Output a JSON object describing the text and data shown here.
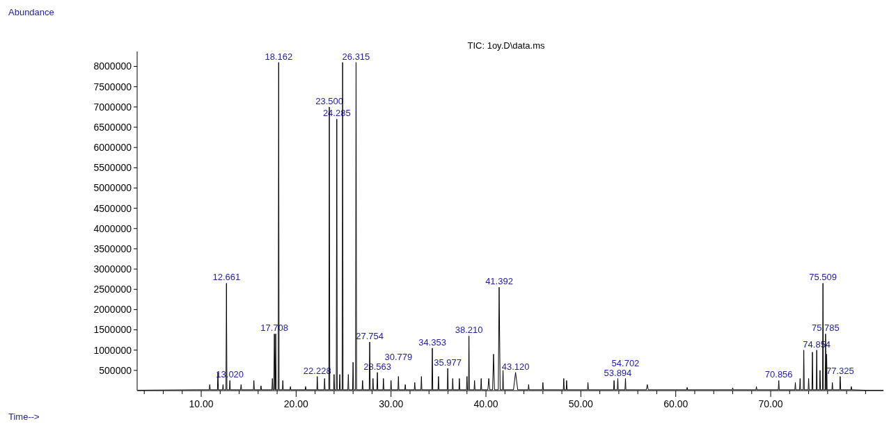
{
  "chart_data": {
    "type": "line",
    "title": "TIC: 1oy.D\\data.ms",
    "xlim": [
      3.25,
      82.1
    ],
    "ylim": [
      0,
      8370000
    ],
    "xticks": [
      {
        "value": 4,
        "label": null
      },
      {
        "value": 6,
        "label": null
      },
      {
        "value": 8,
        "label": null
      },
      {
        "value": 10,
        "label": "10.00"
      },
      {
        "value": 12,
        "label": null
      },
      {
        "value": 14,
        "label": null
      },
      {
        "value": 16,
        "label": null
      },
      {
        "value": 18,
        "label": null
      },
      {
        "value": 20,
        "label": "20.00"
      },
      {
        "value": 22,
        "label": null
      },
      {
        "value": 24,
        "label": null
      },
      {
        "value": 26,
        "label": null
      },
      {
        "value": 28,
        "label": null
      },
      {
        "value": 30,
        "label": "30.00"
      },
      {
        "value": 32,
        "label": null
      },
      {
        "value": 34,
        "label": null
      },
      {
        "value": 36,
        "label": null
      },
      {
        "value": 38,
        "label": null
      },
      {
        "value": 40,
        "label": "40.00"
      },
      {
        "value": 42,
        "label": null
      },
      {
        "value": 44,
        "label": null
      },
      {
        "value": 46,
        "label": null
      },
      {
        "value": 48,
        "label": null
      },
      {
        "value": 50,
        "label": "50.00"
      },
      {
        "value": 52,
        "label": null
      },
      {
        "value": 54,
        "label": null
      },
      {
        "value": 56,
        "label": null
      },
      {
        "value": 58,
        "label": null
      },
      {
        "value": 60,
        "label": "60.00"
      },
      {
        "value": 62,
        "label": null
      },
      {
        "value": 64,
        "label": null
      },
      {
        "value": 66,
        "label": null
      },
      {
        "value": 68,
        "label": null
      },
      {
        "value": 70,
        "label": "70.00"
      },
      {
        "value": 72,
        "label": null
      },
      {
        "value": 74,
        "label": null
      },
      {
        "value": 76,
        "label": null
      },
      {
        "value": 78,
        "label": null
      },
      {
        "value": 80,
        "label": null
      },
      {
        "value": 82,
        "label": null
      }
    ],
    "yticks": [
      500000,
      1000000,
      1500000,
      2000000,
      2500000,
      3000000,
      3500000,
      4000000,
      4500000,
      5000000,
      5500000,
      6000000,
      6500000,
      7000000,
      7500000,
      8000000
    ],
    "series": [
      {
        "color": "#000000",
        "x": [
          3.3,
          9.5,
          10.85,
          10.9,
          10.95,
          11.71,
          11.76,
          11.81,
          12.25,
          12.3,
          12.35,
          12.61,
          12.661,
          12.71,
          12.97,
          13.02,
          13.07,
          14.15,
          14.2,
          14.25,
          15.5,
          15.55,
          15.6,
          16.25,
          16.3,
          16.35,
          17.45,
          17.5,
          17.55,
          17.65,
          17.708,
          17.77,
          17.8,
          17.85,
          17.9,
          18.11,
          18.162,
          18.21,
          18.55,
          18.6,
          18.65,
          19.35,
          19.4,
          19.45,
          20.95,
          21.0,
          21.05,
          22.18,
          22.228,
          22.28,
          22.95,
          23.0,
          23.05,
          23.45,
          23.5,
          23.55,
          23.95,
          24.0,
          24.05,
          24.23,
          24.285,
          24.33,
          24.55,
          24.6,
          24.65,
          24.85,
          24.9,
          24.95,
          25.45,
          25.5,
          25.55,
          25.95,
          26.0,
          26.05,
          26.26,
          26.315,
          26.37,
          26.95,
          27.0,
          27.05,
          27.7,
          27.754,
          27.81,
          28.05,
          28.1,
          28.15,
          28.51,
          28.563,
          28.61,
          29.15,
          29.2,
          29.25,
          29.95,
          30.0,
          30.05,
          30.73,
          30.779,
          30.83,
          31.45,
          31.5,
          31.55,
          32.45,
          32.5,
          32.55,
          33.15,
          33.2,
          33.25,
          34.3,
          34.353,
          34.4,
          34.95,
          35.0,
          35.05,
          35.93,
          35.977,
          36.03,
          36.45,
          36.5,
          36.55,
          37.15,
          37.2,
          37.25,
          37.95,
          38.0,
          38.05,
          38.16,
          38.21,
          38.26,
          38.75,
          38.8,
          38.85,
          39.45,
          39.5,
          39.55,
          40.2,
          40.3,
          40.4,
          40.7,
          40.8,
          40.9,
          41.3,
          41.392,
          41.5,
          41.75,
          41.8,
          41.85,
          42.9,
          43.12,
          43.35,
          44.45,
          44.5,
          44.55,
          45.95,
          46.0,
          46.05,
          48.15,
          48.2,
          48.25,
          48.45,
          48.5,
          48.55,
          50.7,
          50.75,
          50.8,
          53.45,
          53.5,
          53.55,
          53.84,
          53.894,
          53.94,
          54.65,
          54.702,
          54.75,
          56.9,
          57.0,
          57.1,
          61.15,
          61.2,
          61.25,
          65.95,
          66.0,
          66.05,
          68.45,
          68.5,
          68.55,
          70.8,
          70.856,
          70.9,
          72.55,
          72.6,
          72.65,
          73.05,
          73.1,
          73.15,
          73.44,
          73.49,
          73.54,
          73.95,
          74.0,
          74.05,
          74.35,
          74.4,
          74.45,
          74.8,
          74.854,
          74.9,
          75.15,
          75.2,
          75.25,
          75.46,
          75.509,
          75.56,
          75.74,
          75.785,
          75.84,
          75.87,
          75.9,
          75.95,
          76.45,
          76.5,
          76.55,
          77.27,
          77.325,
          77.38,
          78.45,
          78.5,
          78.55,
          80.0,
          82.0
        ],
        "values": [
          10000,
          20000,
          20000,
          150000,
          20000,
          20000,
          450000,
          20000,
          20000,
          150000,
          20000,
          20000,
          2650000,
          20000,
          20000,
          250000,
          20000,
          20000,
          150000,
          20000,
          20000,
          250000,
          20000,
          20000,
          120000,
          20000,
          20000,
          300000,
          20000,
          20000,
          1400000,
          20000,
          20000,
          1400000,
          20000,
          20000,
          8100000,
          20000,
          20000,
          250000,
          20000,
          20000,
          100000,
          20000,
          20000,
          100000,
          20000,
          20000,
          350000,
          20000,
          20000,
          300000,
          20000,
          20000,
          7000000,
          20000,
          20000,
          400000,
          20000,
          20000,
          6700000,
          20000,
          20000,
          400000,
          20000,
          20000,
          8100000,
          20000,
          20000,
          400000,
          20000,
          20000,
          700000,
          20000,
          20000,
          8100000,
          20000,
          20000,
          250000,
          20000,
          20000,
          1200000,
          20000,
          20000,
          300000,
          20000,
          20000,
          450000,
          20000,
          20000,
          300000,
          20000,
          20000,
          250000,
          20000,
          20000,
          350000,
          20000,
          20000,
          150000,
          20000,
          20000,
          200000,
          20000,
          20000,
          350000,
          20000,
          20000,
          1050000,
          20000,
          20000,
          350000,
          20000,
          20000,
          550000,
          20000,
          20000,
          300000,
          20000,
          20000,
          300000,
          20000,
          20000,
          350000,
          20000,
          20000,
          1350000,
          20000,
          20000,
          250000,
          20000,
          20000,
          300000,
          20000,
          20000,
          300000,
          20000,
          20000,
          900000,
          20000,
          20000,
          2550000,
          20000,
          20000,
          500000,
          20000,
          20000,
          450000,
          20000,
          20000,
          150000,
          20000,
          20000,
          200000,
          20000,
          20000,
          300000,
          20000,
          20000,
          250000,
          20000,
          20000,
          200000,
          20000,
          20000,
          250000,
          20000,
          20000,
          300000,
          20000,
          20000,
          300000,
          20000,
          20000,
          150000,
          20000,
          20000,
          80000,
          20000,
          20000,
          70000,
          20000,
          20000,
          100000,
          20000,
          20000,
          250000,
          20000,
          20000,
          200000,
          20000,
          20000,
          300000,
          20000,
          20000,
          1000000,
          20000,
          20000,
          300000,
          20000,
          20000,
          950000,
          20000,
          20000,
          1000000,
          20000,
          20000,
          500000,
          20000,
          20000,
          2650000,
          20000,
          20000,
          1400000,
          20000,
          20000,
          900000,
          20000,
          20000,
          200000,
          20000,
          20000,
          350000,
          20000,
          20000,
          100000,
          20000,
          10000,
          10000
        ]
      }
    ],
    "annotations": [
      "Abundance",
      "Time-->",
      {
        "text": "12.661",
        "x": 12.661,
        "y": 2650000
      },
      {
        "text": "13.020",
        "x": 13.02,
        "y": 250000
      },
      {
        "text": "17.708",
        "x": 17.708,
        "y": 1400000
      },
      {
        "text": "18.162",
        "x": 18.162,
        "y": 8100000
      },
      {
        "text": "22.228",
        "x": 22.228,
        "y": 350000
      },
      {
        "text": "23.500",
        "x": 23.5,
        "y": 7000000
      },
      {
        "text": "24.285",
        "x": 24.285,
        "y": 6700000
      },
      {
        "text": "26.315",
        "x": 26.315,
        "y": 8100000
      },
      {
        "text": "27.754",
        "x": 27.754,
        "y": 1200000
      },
      {
        "text": "28.563",
        "x": 28.563,
        "y": 450000
      },
      {
        "text": "30.779",
        "x": 30.779,
        "y": 350000
      },
      {
        "text": "34.353",
        "x": 34.353,
        "y": 1050000
      },
      {
        "text": "35.977",
        "x": 35.977,
        "y": 550000
      },
      {
        "text": "38.210",
        "x": 38.21,
        "y": 1350000
      },
      {
        "text": "41.392",
        "x": 41.392,
        "y": 2550000
      },
      {
        "text": "43.120",
        "x": 43.12,
        "y": 450000
      },
      {
        "text": "53.894",
        "x": 53.894,
        "y": 300000
      },
      {
        "text": "54.702",
        "x": 54.702,
        "y": 300000
      },
      {
        "text": "70.856",
        "x": 70.856,
        "y": 250000
      },
      {
        "text": "74.854",
        "x": 74.854,
        "y": 1000000
      },
      {
        "text": "75.509",
        "x": 75.509,
        "y": 2650000
      },
      {
        "text": "75.785",
        "x": 75.785,
        "y": 1400000
      },
      {
        "text": "77.325",
        "x": 77.325,
        "y": 350000
      }
    ]
  }
}
